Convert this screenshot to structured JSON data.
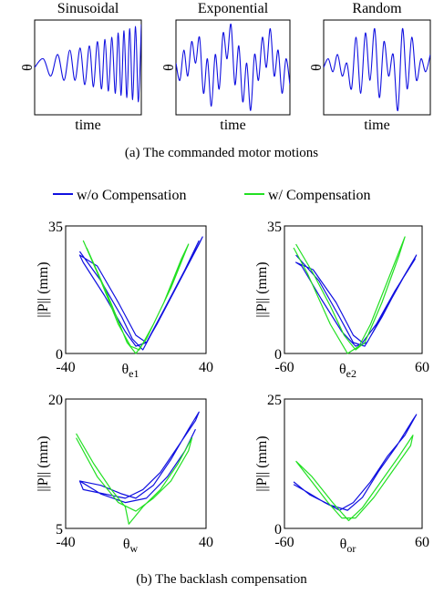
{
  "captions": [
    "(a) The commanded motor motions",
    "(b) The backlash compensation"
  ],
  "legend": [
    {
      "name": "w/o Compensation",
      "color": "#1010e0"
    },
    {
      "name": "w/ Compensation",
      "color": "#22e022"
    }
  ],
  "chart_data": [
    {
      "type": "line",
      "title": "Sinusoidal",
      "xlabel": "time",
      "ylabel": "θ",
      "color": "#1010e0",
      "xlim": [
        0,
        18.5
      ],
      "ylim": [
        -1.1,
        1.1
      ],
      "x": [
        0,
        1.5,
        2.8,
        4,
        5.1,
        6.1,
        7.0,
        7.9,
        8.7,
        9.5,
        10.2,
        10.9,
        11.6,
        12.2,
        12.8,
        13.4,
        14,
        14.5,
        15,
        15.5,
        16,
        16.5,
        17,
        17.5,
        18,
        18.5
      ],
      "values": [
        0,
        0.2,
        -0.2,
        0.3,
        -0.3,
        0.4,
        -0.3,
        0.45,
        -0.4,
        0.5,
        -0.45,
        0.6,
        -0.5,
        0.65,
        -0.55,
        0.7,
        -0.6,
        0.8,
        -0.65,
        0.85,
        -0.7,
        0.9,
        -0.75,
        0.95,
        -0.8,
        1.0
      ]
    },
    {
      "type": "line",
      "title": "Exponential",
      "xlabel": "time",
      "ylabel": "θ",
      "color": "#1010e0",
      "xlim": [
        0,
        29
      ],
      "ylim": [
        -1.1,
        1.1
      ],
      "x": [
        0,
        1,
        2,
        3,
        4,
        5,
        6,
        7,
        8,
        9,
        10,
        11,
        12,
        13,
        14,
        15,
        16,
        17,
        18,
        19,
        20,
        21,
        22,
        23,
        24,
        25,
        26,
        27,
        28,
        29
      ],
      "values": [
        0.1,
        -0.3,
        0.4,
        -0.2,
        0.6,
        0.1,
        0.7,
        -0.6,
        0.2,
        -0.9,
        0.3,
        -0.5,
        0.8,
        0.2,
        1.0,
        -0.4,
        0.5,
        -0.8,
        0.1,
        -1.0,
        0.3,
        -0.3,
        0.7,
        0.0,
        0.9,
        -0.2,
        0.4,
        -0.6,
        0.2,
        -0.4
      ]
    },
    {
      "type": "line",
      "title": "Random",
      "xlabel": "time",
      "ylabel": "θ",
      "color": "#1010e0",
      "xlim": [
        0,
        23
      ],
      "ylim": [
        -1.1,
        1.1
      ],
      "x": [
        0,
        1,
        2,
        3,
        4,
        5,
        6,
        7,
        8,
        9,
        10,
        11,
        12,
        13,
        14,
        15,
        16,
        17,
        18,
        19,
        20,
        21,
        22,
        23
      ],
      "values": [
        0,
        0.2,
        -0.1,
        0.3,
        -0.2,
        0.1,
        -0.5,
        0.7,
        -0.6,
        0.8,
        -0.3,
        0.9,
        -0.7,
        0.6,
        -0.2,
        0.3,
        -1.0,
        0.9,
        -0.5,
        0.7,
        -0.3,
        0.2,
        -0.1,
        0.3
      ]
    },
    {
      "type": "loop",
      "xlabel": "θ",
      "xlabel_subscript": "e1",
      "ylabel": "||P|| (mm)",
      "xlim": [
        -40,
        40
      ],
      "xticks": [
        -40,
        40
      ],
      "ylim": [
        0,
        35
      ],
      "yticks": [
        0,
        35
      ],
      "series": [
        {
          "color": "#1010e0",
          "x": [
            -32,
            -20,
            -8,
            -2,
            4,
            14,
            26,
            38,
            36,
            24,
            12,
            6,
            0,
            -10,
            -22,
            -32,
            -30,
            -18,
            -6,
            0,
            6,
            16,
            28,
            36
          ],
          "values": [
            28,
            20,
            10,
            4,
            1,
            10,
            21,
            32,
            30,
            19,
            8,
            3,
            5,
            14,
            24,
            27,
            25,
            16,
            6,
            2,
            3,
            12,
            23,
            31
          ]
        },
        {
          "color": "#22e022",
          "x": [
            -30,
            -20,
            -10,
            -3,
            2,
            10,
            20,
            30,
            26,
            16,
            6,
            0,
            -5,
            -16,
            -28
          ],
          "values": [
            31,
            20,
            8,
            2,
            1,
            8,
            18,
            30,
            26,
            14,
            4,
            0,
            3,
            16,
            29
          ]
        }
      ]
    },
    {
      "type": "loop",
      "xlabel": "θ",
      "xlabel_subscript": "e2",
      "ylabel": "||P|| (mm)",
      "xlim": [
        -60,
        60
      ],
      "xticks": [
        -60,
        60
      ],
      "ylim": [
        0,
        35
      ],
      "yticks": [
        0,
        35
      ],
      "series": [
        {
          "color": "#1010e0",
          "x": [
            -50,
            -30,
            -12,
            0,
            10,
            25,
            40,
            55,
            52,
            36,
            20,
            8,
            0,
            -15,
            -35,
            -50,
            -45,
            -28,
            -10,
            2,
            12,
            28,
            44,
            54
          ],
          "values": [
            27,
            20,
            10,
            3,
            2,
            10,
            19,
            27,
            25,
            17,
            8,
            3,
            5,
            14,
            23,
            25,
            24,
            15,
            6,
            2,
            3,
            12,
            21,
            26
          ]
        },
        {
          "color": "#22e022",
          "x": [
            -50,
            -35,
            -20,
            -8,
            2,
            10,
            25,
            40,
            45,
            30,
            15,
            5,
            -5,
            -20,
            -40,
            -52
          ],
          "values": [
            30,
            22,
            13,
            5,
            1,
            3,
            14,
            27,
            32,
            20,
            8,
            2,
            0,
            8,
            22,
            29
          ]
        }
      ]
    },
    {
      "type": "loop",
      "xlabel": "θ",
      "xlabel_subscript": "w",
      "ylabel": "||P|| (mm)",
      "xlim": [
        -40,
        40
      ],
      "xticks": [
        -40,
        40
      ],
      "ylim": [
        5,
        20
      ],
      "yticks": [
        5,
        20
      ],
      "series": [
        {
          "color": "#1010e0",
          "x": [
            -32,
            -20,
            -8,
            0,
            10,
            20,
            30,
            36,
            34,
            24,
            14,
            4,
            -6,
            -18,
            -30,
            -32,
            -20,
            -6,
            6,
            18,
            28,
            34
          ],
          "values": [
            10.5,
            10,
            9,
            8.5,
            10,
            13,
            16.5,
            18.5,
            17.5,
            14.5,
            11.5,
            9.5,
            8.5,
            9,
            9.5,
            10.5,
            9,
            8,
            8.5,
            11,
            14,
            16.5
          ]
        },
        {
          "color": "#22e022",
          "x": [
            -34,
            -24,
            -14,
            -6,
            -4,
            4,
            14,
            24,
            32,
            30,
            20,
            10,
            0,
            -10,
            -22,
            -34
          ],
          "values": [
            16,
            12.5,
            9.5,
            7.5,
            5.5,
            7.5,
            9.5,
            12.5,
            15.5,
            14,
            10.5,
            8.5,
            7,
            8,
            11,
            15.5
          ]
        }
      ]
    },
    {
      "type": "loop",
      "xlabel": "θ",
      "xlabel_subscript": "or",
      "ylabel": "||P|| (mm)",
      "xlim": [
        -60,
        60
      ],
      "xticks": [
        -60,
        60
      ],
      "ylim": [
        0,
        25
      ],
      "yticks": [
        0,
        25
      ],
      "series": [
        {
          "color": "#1010e0",
          "x": [
            -52,
            -40,
            -25,
            -12,
            0,
            15,
            30,
            45,
            55,
            52,
            38,
            22,
            8,
            -5,
            -20,
            -38,
            -52
          ],
          "values": [
            8.5,
            7,
            5,
            3.5,
            5,
            9,
            14,
            18,
            22,
            21,
            16,
            11,
            6,
            3.5,
            4.5,
            6.5,
            9
          ]
        },
        {
          "color": "#22e022",
          "x": [
            -50,
            -36,
            -22,
            -10,
            2,
            18,
            34,
            50,
            52,
            40,
            24,
            8,
            -4,
            -18,
            -36,
            -50
          ],
          "values": [
            13,
            9,
            5,
            2,
            2,
            6,
            11,
            16,
            18,
            14,
            9,
            4,
            1.5,
            5,
            10,
            13
          ]
        }
      ]
    }
  ]
}
